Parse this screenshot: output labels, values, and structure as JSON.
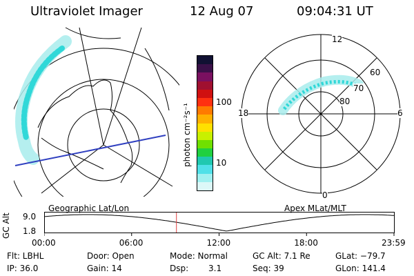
{
  "header": {
    "instrument": "Ultraviolet Imager",
    "date": "12 Aug 07",
    "time": "09:04:31 UT"
  },
  "geo_panel": {
    "caption": "Geographic Lat/Lon"
  },
  "apex_panel": {
    "caption": "Apex MLat/MLT",
    "mlt_labels": [
      "12",
      "18",
      "6",
      "0"
    ],
    "mlat_labels": [
      "60",
      "70",
      "80"
    ]
  },
  "colorbar": {
    "unit_label": "photon cm⁻²s⁻¹",
    "ticks": [
      "100",
      "10"
    ],
    "colors": [
      "#111133",
      "#3a1048",
      "#7a1060",
      "#a01030",
      "#d01010",
      "#ff3010",
      "#ff7a00",
      "#ffb000",
      "#ffe000",
      "#c8f000",
      "#70e000",
      "#20d040",
      "#20c8b0",
      "#50e0e8",
      "#a0f0f0",
      "#dcf8f8"
    ]
  },
  "timeline": {
    "axis_label": "GC Alt",
    "y_ticks": [
      "9.0",
      "1.8"
    ],
    "x_ticks": [
      "00:00",
      "06:00",
      "12:00",
      "18:00",
      "23:59"
    ],
    "current_time_hours": 9.075
  },
  "footer": {
    "row1": [
      "Flt: LBHL",
      "Door: Open",
      "Mode: Normal",
      "GC Alt: 7.1 Re",
      "GLat: −79.7"
    ],
    "row2": [
      "IP: 36.0",
      "Gain: 14",
      "Dsp:",
      "3.1",
      "Seq: 39",
      "GLon: 141.4"
    ]
  },
  "colors": {
    "aurora_outer": "#a8ecec",
    "aurora_inner": "#30d8d8",
    "marker": "#e04040",
    "path": "#3040c0"
  }
}
